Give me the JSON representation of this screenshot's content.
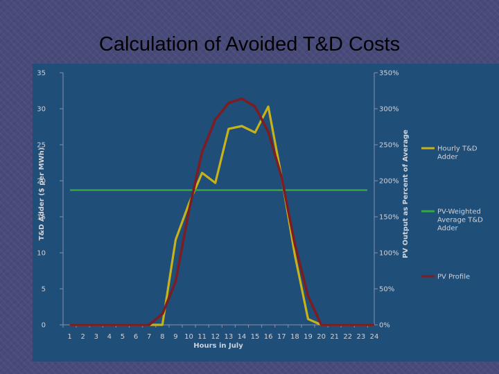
{
  "slide": {
    "title": "Calculation of Avoided T&D Costs"
  },
  "chart_data": {
    "type": "line",
    "title": "Calculation of Avoided T&D Costs",
    "xlabel": "Hours in July",
    "ylabel": "T&D Adder ($ per MWh)",
    "y2label": "PV Output as Percent of Average",
    "categories": [
      "1",
      "2",
      "3",
      "4",
      "5",
      "6",
      "7",
      "8",
      "9",
      "10",
      "11",
      "12",
      "13",
      "14",
      "15",
      "16",
      "17",
      "18",
      "19",
      "20",
      "21",
      "22",
      "23",
      "24"
    ],
    "ylim": [
      0,
      35
    ],
    "yticks": [
      "0",
      "5",
      "10",
      "15",
      "20",
      "25",
      "30",
      "35"
    ],
    "y2lim": [
      0,
      350
    ],
    "y2ticks": [
      "0%",
      "50%",
      "100%",
      "150%",
      "200%",
      "250%",
      "300%",
      "350%"
    ],
    "grid": false,
    "legend_position": "right",
    "colors": {
      "panel": "#1f4e79",
      "axis": "#8a93a6",
      "text": "#d0d3da",
      "hourly": "#c8b21a",
      "weighted": "#35a83e",
      "pv": "#7a1e24"
    },
    "series": [
      {
        "name": "Hourly T&D Adder",
        "axis": "left",
        "values": [
          0,
          0,
          0,
          0,
          0,
          0,
          0,
          0,
          11.8,
          16.8,
          21.1,
          19.7,
          27.2,
          27.6,
          26.7,
          30.3,
          20.5,
          9.7,
          0.8,
          0,
          0,
          0,
          0,
          0
        ]
      },
      {
        "name": "PV-Weighted Average T&D Adder",
        "axis": "left",
        "values": [
          18.7,
          18.7,
          18.7,
          18.7,
          18.7,
          18.7,
          18.7,
          18.7,
          18.7,
          18.7,
          18.7,
          18.7,
          18.7,
          18.7,
          18.7,
          18.7,
          18.7,
          18.7,
          18.7,
          18.7,
          18.7,
          18.7,
          18.7,
          18.7
        ]
      },
      {
        "name": "PV Profile",
        "axis": "right",
        "values": [
          0,
          0,
          0,
          0,
          0,
          0,
          0,
          15,
          60,
          158,
          240,
          285,
          308,
          314,
          303,
          268,
          205,
          112,
          40,
          0,
          0,
          0,
          0,
          0
        ]
      }
    ]
  }
}
